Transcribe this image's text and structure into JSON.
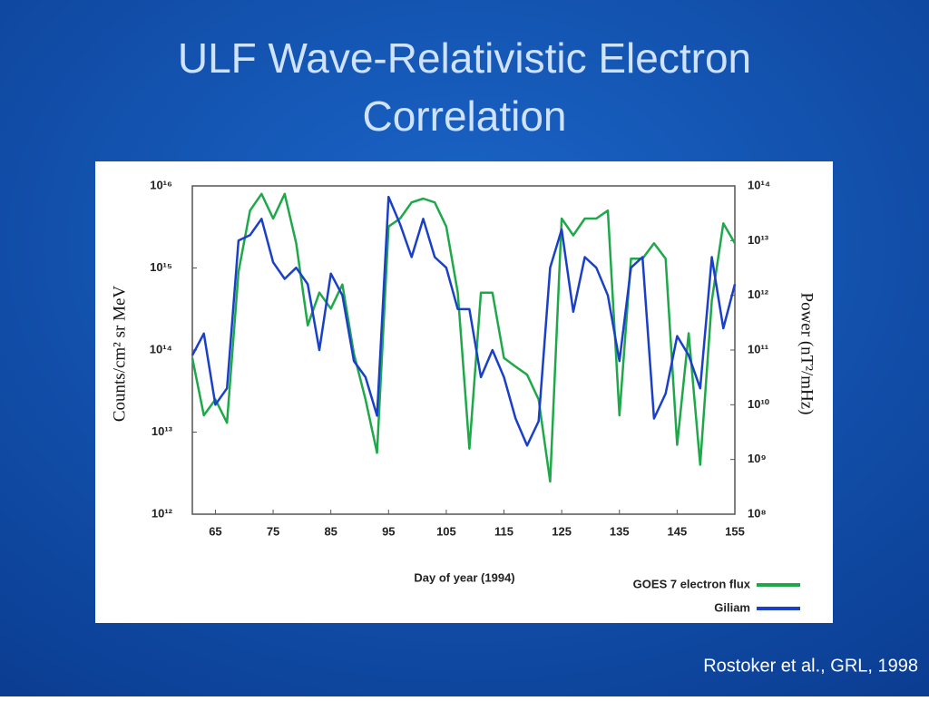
{
  "slide": {
    "title_lines": [
      "ULF Wave-Relativistic Electron",
      "Correlation"
    ],
    "footer": "Rostoker et al., GRL, 1998"
  },
  "chart_data": {
    "type": "line",
    "xlabel": "Day of year (1994)",
    "ylabel": "Counts/cm² sr MeV",
    "y2label": "Power (nT²/mHz)",
    "x": [
      61,
      63,
      65,
      67,
      69,
      71,
      73,
      75,
      77,
      79,
      81,
      83,
      85,
      87,
      89,
      91,
      93,
      95,
      97,
      99,
      101,
      103,
      105,
      107,
      109,
      111,
      113,
      115,
      117,
      119,
      121,
      123,
      125,
      127,
      129,
      131,
      133,
      135,
      137,
      139,
      141,
      143,
      145,
      147,
      149,
      151,
      153,
      155
    ],
    "xlim": [
      61,
      155
    ],
    "xticks": [
      65,
      75,
      85,
      95,
      105,
      115,
      125,
      135,
      145,
      155
    ],
    "ylim": [
      1000000000000.0,
      1e+16
    ],
    "yscale": "log",
    "yticks": [
      {
        "value": 1000000000000.0,
        "label": "10¹²"
      },
      {
        "value": 10000000000000.0,
        "label": "10¹³"
      },
      {
        "value": 100000000000000.0,
        "label": "10¹⁴"
      },
      {
        "value": 1000000000000000.0,
        "label": "10¹⁵"
      },
      {
        "value": 1e+16,
        "label": "10¹⁶"
      }
    ],
    "y2lim": [
      100000000.0,
      100000000000000.0
    ],
    "y2scale": "log",
    "y2ticks": [
      {
        "value": 100000000.0,
        "label": "10⁸"
      },
      {
        "value": 1000000000.0,
        "label": "10⁹"
      },
      {
        "value": 10000000000.0,
        "label": "10¹⁰"
      },
      {
        "value": 100000000000.0,
        "label": "10¹¹"
      },
      {
        "value": 1000000000000.0,
        "label": "10¹²"
      },
      {
        "value": 10000000000000.0,
        "label": "10¹³"
      },
      {
        "value": 100000000000000.0,
        "label": "10¹⁴"
      }
    ],
    "legend": "lower right",
    "series": [
      {
        "name": "GOES 7 electron flux",
        "color": "#1fa84a",
        "axis": "y",
        "values": [
          80000000000000.0,
          16000000000000.0,
          25000000000000.0,
          13000000000000.0,
          900000000000000.0,
          5000000000000000.0,
          8000000000000000.0,
          4000000000000000.0,
          8000000000000000.0,
          2000000000000000.0,
          200000000000000.0,
          500000000000000.0,
          320000000000000.0,
          630000000000000.0,
          90000000000000.0,
          25000000000000.0,
          5600000000000.0,
          3200000000000000.0,
          4000000000000000.0,
          6300000000000000.0,
          7000000000000000.0,
          6300000000000000.0,
          3200000000000000.0,
          500000000000000.0,
          6300000000000.0,
          500000000000000.0,
          500000000000000.0,
          80000000000000.0,
          63000000000000.0,
          50000000000000.0,
          25000000000000.0,
          2500000000000.0,
          4000000000000000.0,
          2500000000000000.0,
          4000000000000000.0,
          4000000000000000.0,
          5000000000000000.0,
          16000000000000.0,
          1300000000000000.0,
          1300000000000000.0,
          2000000000000000.0,
          1300000000000000.0,
          7000000000000.0,
          160000000000000.0,
          4000000000000.0,
          400000000000000.0,
          3500000000000000.0,
          2000000000000000.0
        ]
      },
      {
        "name": "Giliam",
        "color": "#1a3fc8",
        "axis": "y2",
        "values": [
          80000000000.0,
          200000000000.0,
          10000000000.0,
          20000000000.0,
          10000000000000.0,
          12600000000000.0,
          25000000000000.0,
          4000000000000.0,
          2000000000000.0,
          3200000000000.0,
          1600000000000.0,
          100000000000.0,
          2500000000000.0,
          1000000000000.0,
          63000000000.0,
          32000000000.0,
          6300000000.0,
          63000000000000.0,
          20000000000000.0,
          5000000000000.0,
          25000000000000.0,
          5000000000000.0,
          3200000000000.0,
          560000000000.0,
          560000000000.0,
          32000000000.0,
          100000000000.0,
          32000000000.0,
          5600000000.0,
          1800000000.0,
          5000000000.0,
          3200000000000.0,
          16000000000000.0,
          500000000000.0,
          5000000000000.0,
          3200000000000.0,
          1000000000000.0,
          63000000000.0,
          3200000000000.0,
          5000000000000.0,
          5600000000.0,
          16000000000.0,
          180000000000.0,
          80000000000.0,
          20000000000.0,
          5000000000000.0,
          250000000000.0,
          1600000000000.0
        ]
      }
    ]
  }
}
